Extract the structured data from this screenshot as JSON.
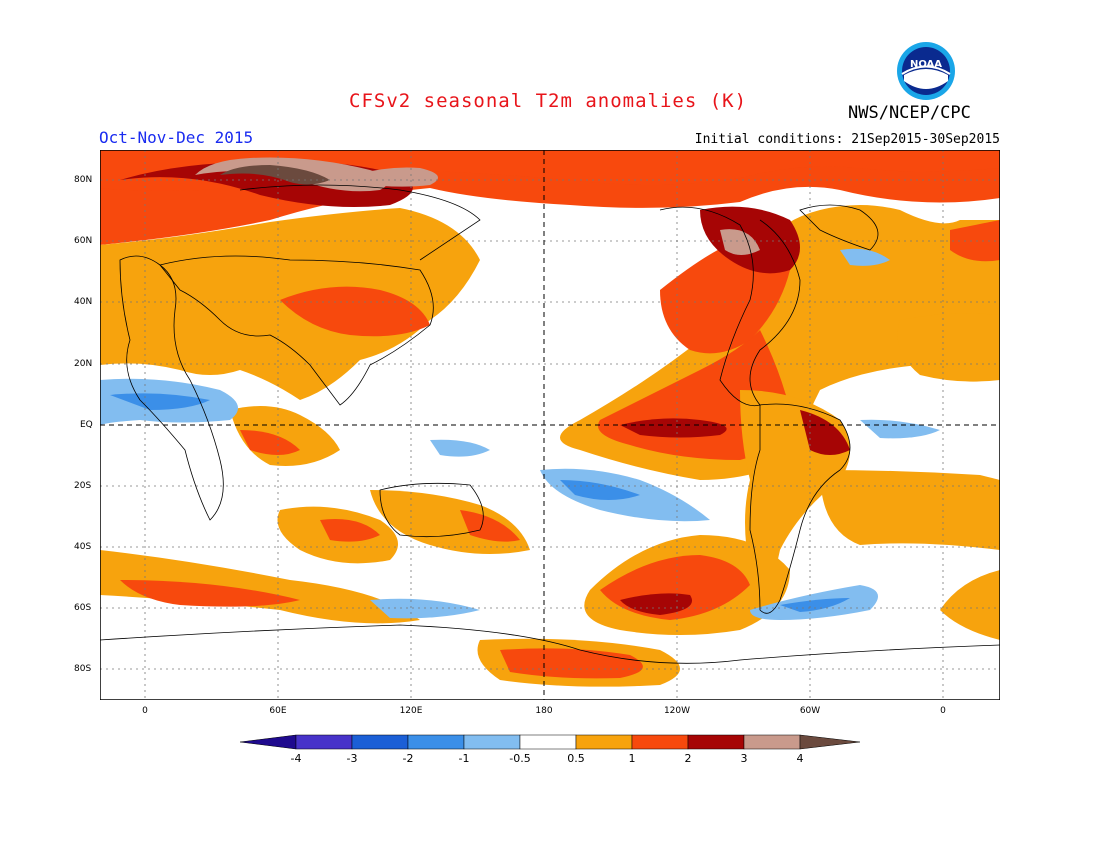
{
  "title": "CFSv2 seasonal T2m anomalies (K)",
  "season": "Oct-Nov-Dec 2015",
  "initial_conditions": "Initial conditions: 21Sep2015-30Sep2015",
  "agency": "NWS/NCEP/CPC",
  "logo_text": "NOAA",
  "map": {
    "lat_labels": [
      "80N",
      "60N",
      "40N",
      "20N",
      "EQ",
      "20S",
      "40S",
      "60S",
      "80S"
    ],
    "lon_labels": [
      "0",
      "60E",
      "120E",
      "180",
      "120W",
      "60W",
      "0"
    ]
  },
  "colorbar": {
    "labels": [
      "-4",
      "-3",
      "-2",
      "-1",
      "-0.5",
      "0.5",
      "1",
      "2",
      "3",
      "4"
    ],
    "colors": [
      "#1f0a8e",
      "#4733c9",
      "#1b5fd6",
      "#3b8fe8",
      "#82bdf0",
      "#ffffff",
      "#f7a30d",
      "#f7490d",
      "#a60505",
      "#c99a8c",
      "#6b4a3e"
    ]
  }
}
